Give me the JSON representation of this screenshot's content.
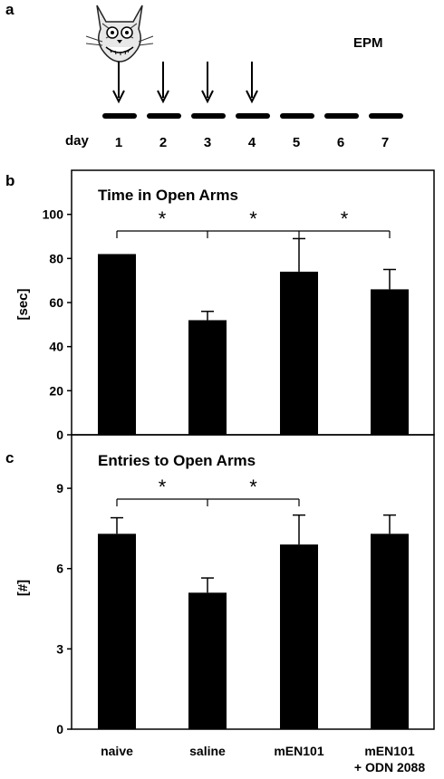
{
  "panel_a": {
    "label": "a",
    "day_label": "day",
    "days": [
      "1",
      "2",
      "3",
      "4",
      "5",
      "6",
      "7"
    ],
    "injection_days": [
      "1",
      "2",
      "3",
      "4"
    ],
    "test_label": "EPM",
    "icon": "cat-icon"
  },
  "chart_data": [
    {
      "type": "bar",
      "panel_label": "b",
      "title": "Time in Open Arms",
      "ylabel": "[sec]",
      "xlabel": "",
      "categories": [
        "naive",
        "saline",
        "mEN101",
        "mEN101\n+ ODN 2088"
      ],
      "values": [
        82,
        52,
        74,
        66
      ],
      "errors": [
        0,
        4,
        15,
        9
      ],
      "ylim": [
        0,
        120
      ],
      "yticks": [
        0,
        20,
        40,
        60,
        80,
        100
      ],
      "significance": [
        {
          "from": 0,
          "to": 1,
          "label": "*"
        },
        {
          "from": 1,
          "to": 2,
          "label": "*"
        },
        {
          "from": 2,
          "to": 3,
          "label": "*"
        }
      ],
      "grid": false,
      "bar_color": "#000000"
    },
    {
      "type": "bar",
      "panel_label": "c",
      "title": "Entries to Open Arms",
      "ylabel": "[#]",
      "xlabel": "",
      "categories": [
        "naive",
        "saline",
        "mEN101",
        "mEN101\n+ ODN 2088"
      ],
      "values": [
        7.3,
        5.1,
        6.9,
        7.3
      ],
      "errors": [
        0.6,
        0.55,
        1.1,
        0.7
      ],
      "ylim": [
        0,
        11
      ],
      "yticks": [
        0,
        3,
        6,
        9
      ],
      "significance": [
        {
          "from": 0,
          "to": 1,
          "label": "*"
        },
        {
          "from": 1,
          "to": 2,
          "label": "*"
        }
      ],
      "grid": false,
      "bar_color": "#000000"
    }
  ],
  "x_tick_labels": [
    "naive",
    "saline",
    "mEN101",
    "mEN101",
    "+ ODN 2088"
  ]
}
